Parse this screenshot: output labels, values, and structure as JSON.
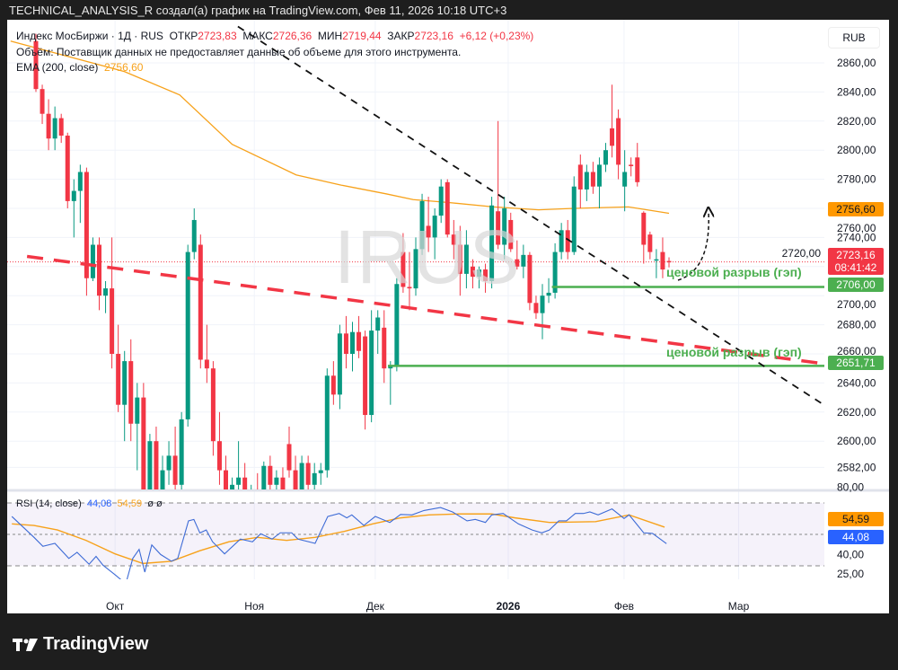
{
  "header": {
    "title": "TECHNICAL_ANALYSIS_R создал(а) график на TradingView.com, Фев 11, 2026 10:18 UTC+3"
  },
  "legend": {
    "symbol": "Индекс МосБиржи · 1Д · RUS",
    "open_label": "ОТКР",
    "open": "2723,83",
    "high_label": "МАКС",
    "high": "2726,36",
    "low_label": "МИН",
    "low": "2719,44",
    "close_label": "ЗАКР",
    "close": "2723,16",
    "change": "+6,12 (+0,23%)",
    "volume_note": "Объём: Поставщик данных не предоставляет данные об объеме для этого инструмента.",
    "ema_label": "EMA (200, close)",
    "ema_value": "2756,60"
  },
  "currency_button": "RUB",
  "watermark": "IRUS",
  "annotations": {
    "gap1": "ценовой разрыв (гэп)",
    "gap2": "ценовой разрыв (гэп)"
  },
  "price_tags": {
    "ema": "2756,60",
    "last": "2723,16",
    "countdown": "08:41:42",
    "gap_upper": "2706,00",
    "gap_lower": "2651,71"
  },
  "rsi_legend": {
    "label": "RSI (14, close)",
    "rsi": "44,08",
    "ma": "54,59",
    "extra": "ø ø"
  },
  "rsi_tags": {
    "ma": "54,59",
    "rsi": "44,08"
  },
  "colors": {
    "up": "#089981",
    "down": "#f23645",
    "ema": "#f7a21b",
    "rsi": "#3d6bd6",
    "rsi_ma": "#f7a21b",
    "gap": "#4caf50"
  },
  "chart_data": {
    "type": "candlestick",
    "price_ticks": [
      "2860,00",
      "2840,00",
      "2820,00",
      "2800,00",
      "2780,00",
      "2760,00",
      "2740,00",
      "2720,00",
      "2700,00",
      "2680,00",
      "2660,00",
      "2640,00",
      "2620,00",
      "2600,00",
      "2582,00"
    ],
    "price_tick_values": [
      2860,
      2840,
      2820,
      2800,
      2780,
      2760,
      2740,
      2720,
      2700,
      2680,
      2660,
      2640,
      2620,
      2600,
      2582
    ],
    "hidden_ticks": [
      2760,
      2720,
      2700
    ],
    "time_ticks": [
      {
        "label": "Окт",
        "i": 12.5
      },
      {
        "label": "Ноя",
        "i": 34.5
      },
      {
        "label": "Дек",
        "i": 53.6
      },
      {
        "label": "2026",
        "i": 74.6,
        "bold": true
      },
      {
        "label": "Фев",
        "i": 92.9
      },
      {
        "label": "Мар",
        "i": 111
      }
    ],
    "ohlc": [
      [
        2875,
        2880,
        2840,
        2842
      ],
      [
        2842,
        2845,
        2818,
        2825
      ],
      [
        2825,
        2835,
        2800,
        2808
      ],
      [
        2808,
        2830,
        2800,
        2822
      ],
      [
        2822,
        2825,
        2805,
        2810
      ],
      [
        2810,
        2812,
        2760,
        2765
      ],
      [
        2765,
        2780,
        2740,
        2772
      ],
      [
        2772,
        2790,
        2750,
        2785
      ],
      [
        2785,
        2788,
        2700,
        2712
      ],
      [
        2712,
        2740,
        2710,
        2735
      ],
      [
        2735,
        2740,
        2690,
        2700
      ],
      [
        2700,
        2710,
        2688,
        2705
      ],
      [
        2705,
        2740,
        2650,
        2660
      ],
      [
        2660,
        2680,
        2620,
        2625
      ],
      [
        2625,
        2662,
        2600,
        2655
      ],
      [
        2655,
        2670,
        2600,
        2612
      ],
      [
        2612,
        2640,
        2580,
        2630
      ],
      [
        2630,
        2640,
        2560,
        2565
      ],
      [
        2565,
        2605,
        2545,
        2600
      ],
      [
        2600,
        2610,
        2560,
        2565
      ],
      [
        2565,
        2590,
        2550,
        2580
      ],
      [
        2580,
        2600,
        2570,
        2590
      ],
      [
        2590,
        2610,
        2560,
        2570
      ],
      [
        2570,
        2620,
        2565,
        2615
      ],
      [
        2615,
        2735,
        2610,
        2730
      ],
      [
        2730,
        2760,
        2725,
        2752
      ],
      [
        2735,
        2742,
        2650,
        2656
      ],
      [
        2656,
        2680,
        2640,
        2650
      ],
      [
        2650,
        2655,
        2590,
        2600
      ],
      [
        2600,
        2620,
        2570,
        2580
      ],
      [
        2580,
        2590,
        2555,
        2560
      ],
      [
        2560,
        2575,
        2540,
        2570
      ],
      [
        2570,
        2600,
        2560,
        2575
      ],
      [
        2575,
        2585,
        2550,
        2560
      ],
      [
        2560,
        2570,
        2540,
        2565
      ],
      [
        2565,
        2578,
        2550,
        2555
      ],
      [
        2555,
        2586,
        2550,
        2583
      ],
      [
        2583,
        2590,
        2560,
        2570
      ],
      [
        2570,
        2580,
        2550,
        2575
      ],
      [
        2575,
        2582,
        2555,
        2560
      ],
      [
        2598,
        2610,
        2575,
        2580
      ],
      [
        2580,
        2590,
        2560,
        2565
      ],
      [
        2565,
        2590,
        2560,
        2585
      ],
      [
        2585,
        2590,
        2565,
        2570
      ],
      [
        2570,
        2585,
        2560,
        2578
      ],
      [
        2578,
        2585,
        2570,
        2580
      ],
      [
        2580,
        2650,
        2575,
        2645
      ],
      [
        2645,
        2655,
        2625,
        2632
      ],
      [
        2632,
        2680,
        2622,
        2674
      ],
      [
        2674,
        2686,
        2650,
        2660
      ],
      [
        2660,
        2682,
        2648,
        2675
      ],
      [
        2675,
        2686,
        2657,
        2662
      ],
      [
        2672,
        2676,
        2608,
        2618
      ],
      [
        2618,
        2690,
        2613,
        2676
      ],
      [
        2676,
        2690,
        2660,
        2685
      ],
      [
        2678,
        2690,
        2640,
        2650
      ],
      [
        2650,
        2655,
        2625,
        2652
      ],
      [
        2652,
        2712,
        2648,
        2708
      ],
      [
        2730,
        2743,
        2702,
        2706
      ],
      [
        2706,
        2730,
        2690,
        2705
      ],
      [
        2705,
        2740,
        2700,
        2732
      ],
      [
        2732,
        2770,
        2728,
        2765
      ],
      [
        2748,
        2768,
        2730,
        2740
      ],
      [
        2740,
        2760,
        2725,
        2755
      ],
      [
        2755,
        2780,
        2750,
        2775
      ],
      [
        2778,
        2780,
        2740,
        2742
      ],
      [
        2742,
        2752,
        2725,
        2735
      ],
      [
        2735,
        2748,
        2700,
        2715
      ],
      [
        2715,
        2745,
        2705,
        2735
      ],
      [
        2720,
        2725,
        2705,
        2713
      ],
      [
        2713,
        2720,
        2705,
        2718
      ],
      [
        2718,
        2722,
        2702,
        2710
      ],
      [
        2710,
        2768,
        2705,
        2762
      ],
      [
        2758,
        2820,
        2732,
        2735
      ],
      [
        2735,
        2768,
        2725,
        2760
      ],
      [
        2752,
        2757,
        2730,
        2732
      ],
      [
        2725,
        2738,
        2718,
        2720
      ],
      [
        2720,
        2735,
        2712,
        2728
      ],
      [
        2728,
        2730,
        2690,
        2695
      ],
      [
        2695,
        2700,
        2684,
        2688
      ],
      [
        2688,
        2708,
        2670,
        2700
      ],
      [
        2700,
        2712,
        2695,
        2702
      ],
      [
        2702,
        2736,
        2698,
        2730
      ],
      [
        2730,
        2750,
        2725,
        2745
      ],
      [
        2745,
        2752,
        2725,
        2730
      ],
      [
        2730,
        2782,
        2728,
        2775
      ],
      [
        2790,
        2797,
        2760,
        2773
      ],
      [
        2773,
        2790,
        2765,
        2785
      ],
      [
        2785,
        2792,
        2770,
        2775
      ],
      [
        2775,
        2795,
        2760,
        2790
      ],
      [
        2790,
        2805,
        2785,
        2800
      ],
      [
        2815,
        2845,
        2795,
        2803
      ],
      [
        2822,
        2828,
        2780,
        2790
      ],
      [
        2775,
        2800,
        2758,
        2785
      ],
      [
        2790,
        2795,
        2782,
        2789
      ],
      [
        2795,
        2805,
        2775,
        2778
      ],
      [
        2757,
        2758,
        2722,
        2735
      ],
      [
        2742,
        2744,
        2725,
        2730
      ],
      [
        2725,
        2732,
        2712,
        2725
      ],
      [
        2730,
        2740,
        2712,
        2718
      ],
      [
        2723.83,
        2726.36,
        2719.44,
        2723.16
      ]
    ],
    "ema": [
      [
        -4,
        2875
      ],
      [
        14,
        2854
      ],
      [
        22.7,
        2838
      ],
      [
        31,
        2804
      ],
      [
        41.1,
        2783
      ],
      [
        48.2,
        2776
      ],
      [
        55.3,
        2770
      ],
      [
        59.6,
        2766
      ],
      [
        65.2,
        2764
      ],
      [
        72.3,
        2761
      ],
      [
        79.4,
        2759
      ],
      [
        85.1,
        2760
      ],
      [
        93.6,
        2761
      ],
      [
        100,
        2756.6
      ]
    ],
    "trendlines": [
      {
        "name": "resistance-trendline",
        "style": "black-dashed",
        "p1": [
          31.9,
          2885
        ],
        "p2": [
          124.8,
          2624
        ]
      },
      {
        "name": "support-trendline",
        "style": "red-dashed",
        "p1": [
          -1.4,
          2727
        ],
        "p2": [
          124.8,
          2653
        ]
      }
    ],
    "gap_levels": [
      {
        "price": 2706.0,
        "from_i": 81.5
      },
      {
        "price": 2651.71,
        "from_i": 55.6
      }
    ],
    "rsi_ticks": [
      {
        "label": "80,00",
        "v": 80
      },
      {
        "label": "40,00",
        "v": 40
      },
      {
        "label": "25,00",
        "v": 25
      }
    ],
    "rsi_bands": [
      70,
      50,
      30
    ],
    "rsi": [
      [
        -3.8,
        61.4
      ],
      [
        -0.3,
        48.1
      ],
      [
        1.1,
        42.4
      ],
      [
        3,
        44.3
      ],
      [
        5.2,
        34.7
      ],
      [
        6.5,
        38.6
      ],
      [
        8.4,
        31
      ],
      [
        9.5,
        36
      ],
      [
        10.6,
        30.4
      ],
      [
        12.5,
        24.3
      ],
      [
        14.2,
        18.6
      ],
      [
        15.3,
        34.7
      ],
      [
        16.3,
        40.5
      ],
      [
        17.2,
        26
      ],
      [
        18.3,
        43.3
      ],
      [
        19.7,
        37.2
      ],
      [
        21.4,
        32.9
      ],
      [
        22.4,
        34.7
      ],
      [
        24.1,
        58.6
      ],
      [
        24.95,
        59.5
      ],
      [
        25.9,
        50.9
      ],
      [
        26.9,
        52.8
      ],
      [
        27.9,
        45.3
      ],
      [
        29.8,
        37.6
      ],
      [
        32.3,
        47
      ],
      [
        34.2,
        45.3
      ],
      [
        35.5,
        50.4
      ],
      [
        37.3,
        47
      ],
      [
        38.6,
        51
      ],
      [
        40.4,
        51
      ],
      [
        41.4,
        47
      ],
      [
        44.1,
        44.3
      ],
      [
        46.1,
        61.4
      ],
      [
        47.9,
        63.3
      ],
      [
        49.1,
        60.5
      ],
      [
        49.9,
        62.4
      ],
      [
        51.8,
        55.7
      ],
      [
        53.6,
        61.4
      ],
      [
        55.9,
        57.6
      ],
      [
        57.6,
        62.7
      ],
      [
        59.4,
        62.4
      ],
      [
        61.3,
        65.2
      ],
      [
        63.9,
        67.1
      ],
      [
        65.8,
        64.3
      ],
      [
        68.1,
        58.6
      ],
      [
        69.4,
        59.5
      ],
      [
        71,
        57.6
      ],
      [
        72,
        62.4
      ],
      [
        73.8,
        63.3
      ],
      [
        76.2,
        56.7
      ],
      [
        78.4,
        52.8
      ],
      [
        79.9,
        51
      ],
      [
        81.1,
        52.8
      ],
      [
        82.6,
        58.6
      ],
      [
        83.8,
        58.6
      ],
      [
        85.2,
        63.3
      ],
      [
        86.5,
        63.3
      ],
      [
        87.5,
        64.3
      ],
      [
        88.8,
        62.4
      ],
      [
        91,
        66.2
      ],
      [
        92.9,
        60.1
      ],
      [
        93.7,
        62.4
      ],
      [
        96,
        51
      ],
      [
        97.4,
        50.6
      ],
      [
        98.9,
        46.2
      ],
      [
        99.6,
        44.08
      ]
    ],
    "rsi_ma": [
      [
        -3.8,
        56.7
      ],
      [
        -0.3,
        55.7
      ],
      [
        3.4,
        52.8
      ],
      [
        7.9,
        46.2
      ],
      [
        12.5,
        37.6
      ],
      [
        16.9,
        31.5
      ],
      [
        21.4,
        32.9
      ],
      [
        25.9,
        39.6
      ],
      [
        30.5,
        45.3
      ],
      [
        35,
        48.1
      ],
      [
        39.6,
        46.2
      ],
      [
        44.1,
        48.1
      ],
      [
        48.7,
        51.9
      ],
      [
        53.2,
        56.7
      ],
      [
        57.6,
        60.5
      ],
      [
        62.1,
        62.4
      ],
      [
        66.7,
        63
      ],
      [
        72,
        63
      ],
      [
        75.7,
        60.5
      ],
      [
        81.1,
        57.6
      ],
      [
        88.4,
        58.1
      ],
      [
        93.7,
        62.4
      ],
      [
        99.3,
        54.59
      ]
    ],
    "rsi_range": [
      20,
      80
    ],
    "ylim": [
      2560,
      2880
    ]
  }
}
